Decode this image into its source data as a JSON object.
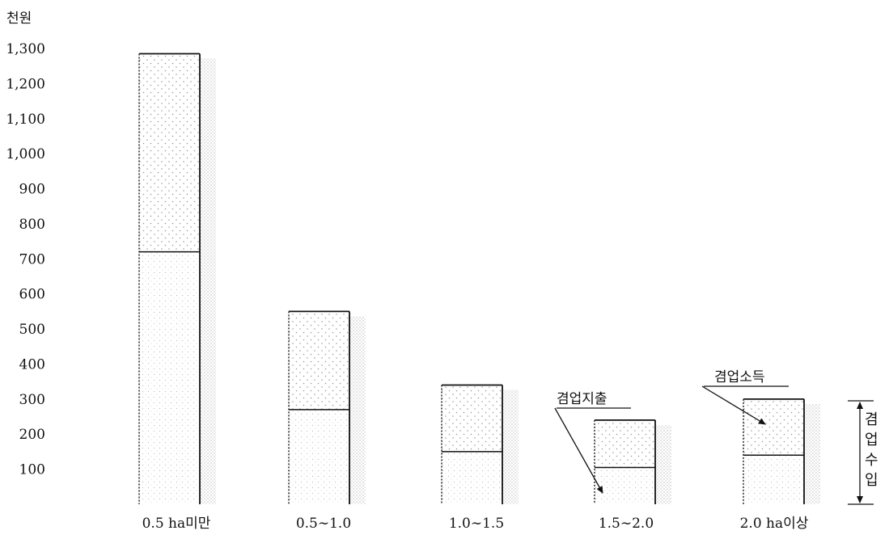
{
  "chart_data": {
    "type": "bar",
    "stacked": true,
    "unit_label": "천원",
    "categories": [
      "0.5 ha미만",
      "0.5∼1.0",
      "1.0∼1.5",
      "1.5∼2.0",
      "2.0 ha이상"
    ],
    "series": [
      {
        "name": "겸업지출",
        "values": [
          720,
          270,
          150,
          105,
          140
        ]
      },
      {
        "name": "겸업소득",
        "values": [
          565,
          280,
          190,
          135,
          160
        ]
      }
    ],
    "totals": [
      1285,
      550,
      340,
      240,
      300
    ],
    "y_ticks": [
      "100",
      "200",
      "300",
      "400",
      "500",
      "600",
      "700",
      "800",
      "900",
      "1,000",
      "1,100",
      "1,200",
      "1,300"
    ],
    "ylim": [
      0,
      1300
    ],
    "annotations": {
      "expense": "겸업지출",
      "income": "겸업소득",
      "revenue_chars": [
        "겸",
        "업",
        "수",
        "입"
      ]
    },
    "colors": {
      "ink": "#111111",
      "stipple": "#9a9a9a",
      "shadow": "#d4d4d4",
      "background": "#ffffff"
    }
  }
}
